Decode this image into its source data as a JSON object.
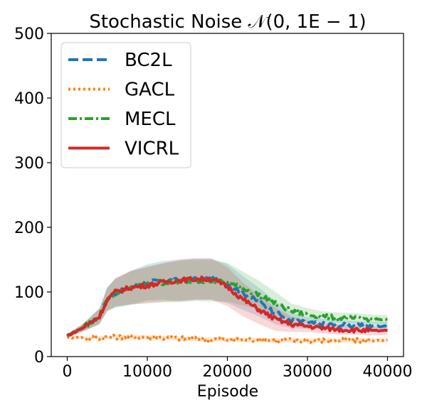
{
  "chart_data": {
    "type": "line",
    "title": "Stochastic Noise 𝒩(0, 1E − 1)",
    "xlabel": "Episode",
    "ylabel": "",
    "xlim": [
      -2000,
      42000
    ],
    "ylim": [
      0,
      500
    ],
    "xticks": [
      0,
      10000,
      20000,
      30000,
      40000
    ],
    "xtick_labels": [
      "0",
      "10000",
      "20000",
      "30000",
      "40000"
    ],
    "yticks": [
      0,
      100,
      200,
      300,
      400,
      500
    ],
    "ytick_labels": [
      "0",
      "100",
      "200",
      "300",
      "400",
      "500"
    ],
    "grid": false,
    "legend_position": "top-left",
    "x": [
      0,
      2000,
      4000,
      5000,
      6000,
      8000,
      10000,
      12000,
      14000,
      16000,
      18000,
      20000,
      22000,
      24000,
      26000,
      28000,
      30000,
      32000,
      34000,
      36000,
      38000,
      40000
    ],
    "series": [
      {
        "name": "BC2L",
        "color": "#1f77b4",
        "style": "dashed",
        "values": [
          32,
          45,
          62,
          90,
          98,
          107,
          115,
          118,
          118,
          120,
          120,
          113,
          98,
          84,
          68,
          56,
          52,
          50,
          49,
          48,
          47,
          47
        ],
        "band": [
          3,
          6,
          12,
          18,
          22,
          26,
          28,
          30,
          32,
          32,
          32,
          30,
          26,
          22,
          18,
          12,
          9,
          8,
          8,
          7,
          7,
          7
        ]
      },
      {
        "name": "GACL",
        "color": "#ff7f0e",
        "style": "dotted",
        "values": [
          30,
          29,
          29,
          30,
          30,
          31,
          30,
          29,
          28,
          27,
          27,
          26,
          26,
          26,
          25,
          25,
          25,
          25,
          25,
          25,
          25,
          25
        ],
        "band": [
          2,
          2,
          2,
          2,
          3,
          3,
          3,
          3,
          3,
          3,
          3,
          3,
          3,
          3,
          3,
          3,
          3,
          3,
          3,
          3,
          3,
          3
        ]
      },
      {
        "name": "MECL",
        "color": "#2ca02c",
        "style": "dashdot",
        "values": [
          32,
          45,
          62,
          88,
          98,
          106,
          112,
          114,
          116,
          118,
          117,
          115,
          105,
          95,
          82,
          70,
          65,
          62,
          60,
          59,
          58,
          57
        ],
        "band": [
          3,
          6,
          12,
          18,
          22,
          26,
          28,
          30,
          32,
          32,
          32,
          30,
          26,
          22,
          18,
          12,
          10,
          8,
          8,
          8,
          7,
          7
        ]
      },
      {
        "name": "VICRL",
        "color": "#d62728",
        "style": "solid",
        "values": [
          32,
          45,
          62,
          88,
          100,
          107,
          110,
          115,
          118,
          120,
          120,
          108,
          88,
          72,
          58,
          50,
          47,
          44,
          42,
          41,
          40,
          40
        ],
        "band": [
          3,
          6,
          12,
          18,
          22,
          26,
          28,
          30,
          32,
          32,
          32,
          30,
          26,
          22,
          18,
          12,
          9,
          8,
          8,
          7,
          7,
          7
        ]
      }
    ]
  }
}
